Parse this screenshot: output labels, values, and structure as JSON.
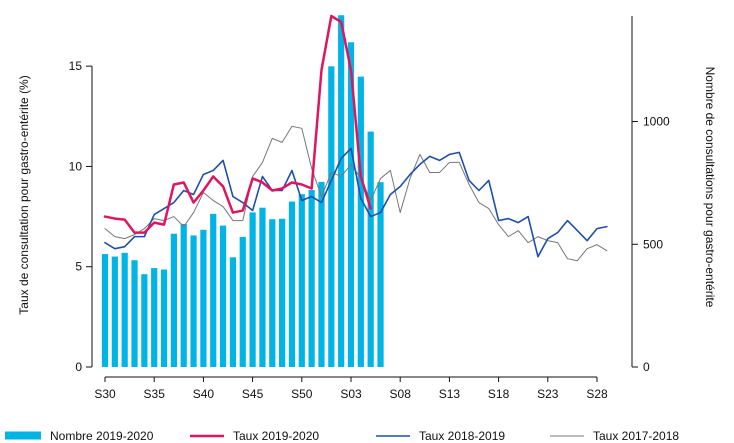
{
  "chart_data": {
    "type": "bar+line",
    "x_labels": [
      "S30",
      "S31",
      "S32",
      "S33",
      "S34",
      "S35",
      "S36",
      "S37",
      "S38",
      "S39",
      "S40",
      "S41",
      "S42",
      "S43",
      "S44",
      "S45",
      "S46",
      "S47",
      "S48",
      "S49",
      "S50",
      "S51",
      "S52",
      "S01",
      "S02",
      "S03",
      "S04",
      "S05",
      "S06",
      "S07",
      "S08",
      "S09",
      "S10",
      "S11",
      "S12",
      "S13",
      "S14",
      "S15",
      "S16",
      "S17",
      "S18",
      "S19",
      "S20",
      "S21",
      "S22",
      "S23",
      "S24",
      "S25",
      "S26",
      "S27",
      "S28",
      "S29"
    ],
    "x_tick_labels": [
      "S30",
      "S35",
      "S40",
      "S45",
      "S50",
      "S03",
      "S08",
      "S13",
      "S18",
      "S23",
      "S28"
    ],
    "ylabel_left": "Taux de consultation pour gastro-entérite (%)",
    "ylabel_right": "Nombre de consultations pour gastro-entérite",
    "ylim_left": [
      0,
      17.5
    ],
    "ylim_right": [
      0,
      1430
    ],
    "yticks_left": [
      0,
      5,
      10,
      15
    ],
    "yticks_right": [
      0,
      500,
      1000
    ],
    "bars": {
      "name": "Nombre 2019-2020",
      "color": "#00b4e6",
      "axis": "right",
      "values": [
        460,
        450,
        465,
        435,
        378,
        403,
        397,
        543,
        583,
        536,
        559,
        624,
        576,
        447,
        530,
        630,
        649,
        602,
        604,
        674,
        704,
        721,
        754,
        1225,
        1433,
        1323,
        1183,
        959,
        753
      ]
    },
    "series": [
      {
        "name": "Taux 2019-2020",
        "color": "#e0155f",
        "width": 2.5,
        "values": [
          7.5,
          7.4,
          7.35,
          6.7,
          6.7,
          7.2,
          7.1,
          9.1,
          9.2,
          8.2,
          8.8,
          9.5,
          9.0,
          7.7,
          7.8,
          9.4,
          9.2,
          8.8,
          8.9,
          9.2,
          9.1,
          8.9,
          14.8,
          17.5,
          17.2,
          14.8,
          9.5,
          7.9
        ]
      },
      {
        "name": "Taux 2018-2019",
        "color": "#1f4fa8",
        "width": 1.6,
        "values": [
          6.2,
          5.9,
          6.0,
          6.5,
          6.5,
          7.6,
          7.9,
          8.2,
          8.8,
          8.6,
          9.6,
          9.8,
          10.3,
          8.5,
          8.2,
          7.8,
          9.5,
          8.8,
          8.8,
          9.8,
          8.3,
          8.5,
          8.2,
          9.3,
          10.4,
          10.9,
          8.4,
          7.5,
          7.7,
          8.6,
          9.0,
          9.6,
          10.1,
          10.5,
          10.3,
          10.6,
          10.7,
          9.3,
          8.8,
          9.3,
          7.3,
          7.4,
          7.2,
          7.5,
          5.5,
          6.4,
          6.7,
          7.3,
          6.8,
          6.3,
          6.9,
          7.0
        ]
      },
      {
        "name": "Taux 2017-2018",
        "color": "#777777",
        "width": 1.0,
        "values": [
          6.9,
          6.5,
          6.4,
          6.6,
          6.9,
          7.4,
          7.3,
          7.5,
          7.0,
          7.7,
          8.7,
          8.3,
          8.0,
          7.3,
          7.3,
          9.5,
          10.2,
          11.4,
          11.2,
          12.0,
          11.9,
          9.9,
          8.5,
          9.7,
          9.5,
          10.1,
          9.4,
          8.3,
          9.4,
          9.8,
          7.7,
          9.4,
          10.6,
          9.7,
          9.7,
          10.2,
          10.2,
          9.1,
          8.2,
          7.9,
          7.1,
          6.5,
          6.8,
          6.2,
          6.5,
          6.3,
          6.2,
          5.4,
          5.3,
          5.9,
          6.1,
          5.8
        ]
      }
    ],
    "legend": {
      "position": "bottom",
      "entries": [
        "Nombre 2019-2020",
        "Taux 2019-2020",
        "Taux 2018-2019",
        "Taux 2017-2018"
      ]
    },
    "grid": false
  }
}
